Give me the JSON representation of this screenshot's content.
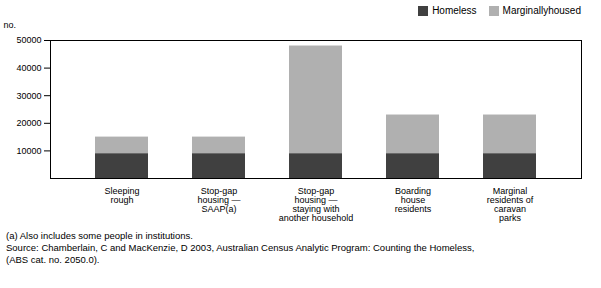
{
  "chart_data": {
    "type": "bar",
    "stacked": true,
    "categories": [
      "Sleeping\nrough",
      "Stop-gap\nhousing —\nSAAP(a)",
      "Stop-gap\nhousing —\nstaying with\nanother household",
      "Boarding\nhouse\nresidents",
      "Marginal\nresidents of\ncaravan\nparks"
    ],
    "series": [
      {
        "name": "Homeless",
        "color": "#404040",
        "values": [
          9000,
          9000,
          9000,
          9000,
          9000
        ]
      },
      {
        "name": "Marginallyhoused",
        "color": "#b0b0b0",
        "values": [
          6000,
          6000,
          39000,
          14000,
          14000
        ]
      }
    ],
    "ylabel": "no.",
    "ylim": [
      0,
      50000
    ],
    "yticks": [
      10000,
      20000,
      30000,
      40000,
      50000
    ],
    "grid": false,
    "legend": "upper right",
    "annotations": [
      "(a) Also includes some people in institutions.",
      "Source: Chamberlain, C and MacKenzie, D 2003, Australian Census Analytic Program: Counting the Homeless,",
      "(ABS cat. no. 2050.0)."
    ]
  }
}
